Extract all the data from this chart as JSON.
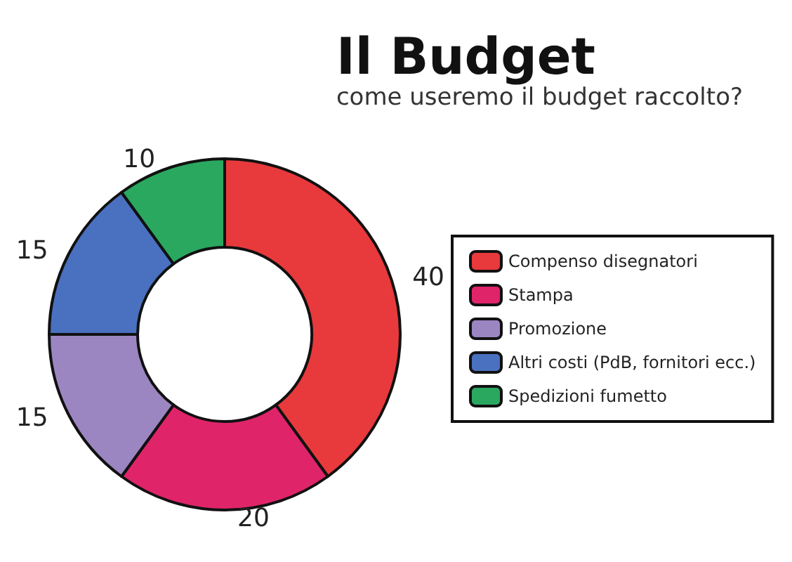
{
  "chart_data": {
    "type": "donut",
    "title": "Il Budget",
    "subtitle": "come useremo il budget raccolto?",
    "categories": [
      "Compenso disegnatori",
      "Stampa",
      "Promozione",
      "Altri costi (PdB, fornitori ecc.)",
      "Spedizioni fumetto"
    ],
    "values": [
      40,
      20,
      15,
      15,
      10
    ],
    "colors": [
      "#e8393c",
      "#e0246a",
      "#9b86c2",
      "#4a70c0",
      "#2aa860"
    ],
    "data_labels": true,
    "legend": "right"
  }
}
